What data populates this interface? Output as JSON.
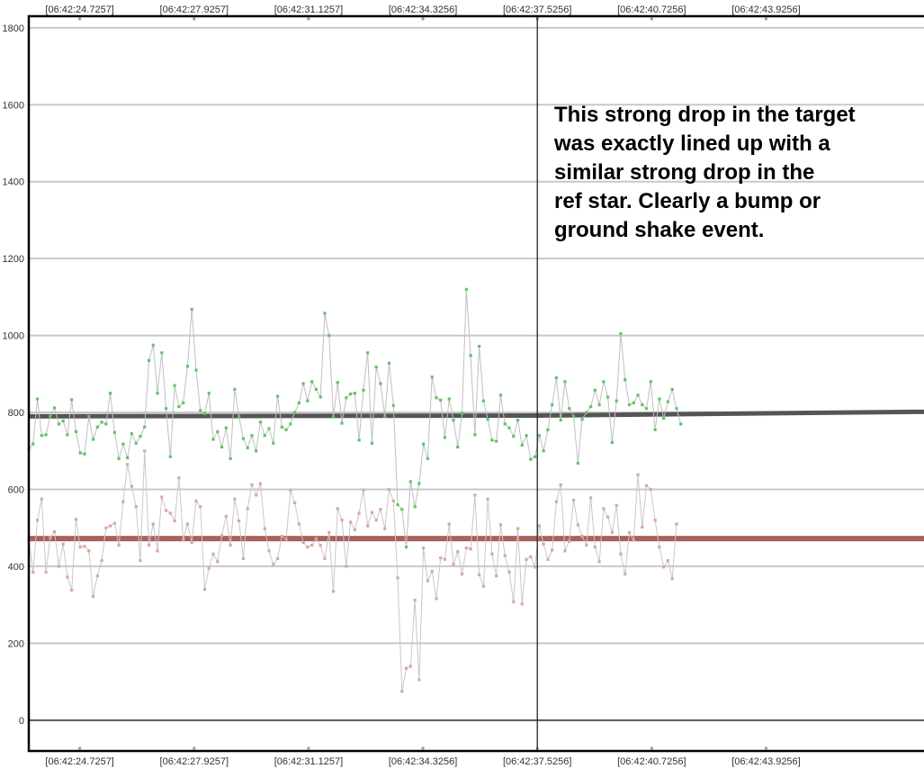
{
  "colors": {
    "background": "#ffffff",
    "gridline": "#c8c8c8",
    "frame": "#000000",
    "cursor_line": "#222222",
    "zero_line": "#555555",
    "target_points": "#5fc65f",
    "target_line": "#c0c0c0",
    "target_baseline": "#555555",
    "ref_points": "#d9a89a",
    "ref_line": "#c8c8c8",
    "ref_baseline": "#a86060"
  },
  "annotation": {
    "text": "This strong drop in the target\nwas exactly lined up with a\nsimilar strong drop in the\nref star. Clearly a bump or\nground shake event."
  },
  "chart_data": {
    "type": "line",
    "title": "",
    "xlabel": "",
    "ylabel": "",
    "xlim": [
      "06:42:23.30",
      "06:42:48.72"
    ],
    "ylim": [
      -80,
      1830
    ],
    "yticks": [
      0,
      200,
      400,
      600,
      800,
      1000,
      1200,
      1400,
      1600,
      1800
    ],
    "ytick_labels": [
      "0",
      "200",
      "400",
      "600",
      "800",
      "1000",
      "1200",
      "1400",
      "1600",
      "1800"
    ],
    "xticks": [
      "06:42:24.7257",
      "06:42:27.9257",
      "06:42:31.1257",
      "06:42:34.3256",
      "06:42:37.5256",
      "06:42:40.7256",
      "06:42:43.9256"
    ],
    "xtick_labels": [
      "[06:42:24.7257]",
      "[06:42:27.9257]",
      "[06:42:31.1257]",
      "[06:42:34.3256]",
      "[06:42:37.5256]",
      "[06:42:40.7256]",
      "[06:42:43.9256]"
    ],
    "cursor_x": "06:42:37.5256",
    "grid": true,
    "legend": "none",
    "series": [
      {
        "role": "target",
        "start": "06:42:23.30",
        "step_seconds": 0.12,
        "values": [
          705,
          718,
          835,
          740,
          742,
          790,
          812,
          770,
          778,
          742,
          833,
          750,
          695,
          692,
          790,
          730,
          762,
          775,
          770,
          850,
          748,
          680,
          718,
          682,
          745,
          720,
          738,
          762,
          935,
          975,
          850,
          955,
          810,
          685,
          870,
          815,
          825,
          920,
          1068,
          910,
          805,
          797,
          850,
          730,
          750,
          710,
          760,
          680,
          860,
          790,
          732,
          708,
          740,
          700,
          775,
          740,
          758,
          720,
          842,
          762,
          755,
          770,
          800,
          825,
          875,
          830,
          880,
          860,
          840,
          1058,
          1000,
          788,
          878,
          772,
          838,
          848,
          850,
          728,
          858,
          955,
          720,
          918,
          875,
          790,
          928,
          818,
          560,
          548,
          450,
          620,
          555,
          615,
          718,
          680,
          892,
          838,
          832,
          735,
          835,
          780,
          710,
          798,
          1120,
          948,
          742,
          972,
          830,
          782,
          728,
          725,
          845,
          770,
          760,
          738,
          780,
          715,
          740,
          678,
          685,
          740,
          700,
          755,
          820,
          890,
          780,
          880,
          810,
          790,
          668,
          782,
          800,
          815,
          858,
          820,
          880,
          840,
          722,
          830,
          1005,
          885,
          820,
          825,
          845,
          820,
          810,
          880,
          755,
          835,
          785,
          828,
          860,
          810,
          770
        ]
      },
      {
        "role": "reference",
        "start": "06:42:23.30",
        "step_seconds": 0.12,
        "values": [
          470,
          385,
          520,
          575,
          385,
          475,
          490,
          400,
          458,
          372,
          338,
          522,
          450,
          452,
          440,
          322,
          375,
          415,
          500,
          505,
          512,
          455,
          568,
          665,
          608,
          555,
          415,
          700,
          455,
          510,
          440,
          580,
          545,
          538,
          518,
          630,
          470,
          510,
          462,
          570,
          555,
          340,
          395,
          432,
          412,
          480,
          530,
          455,
          575,
          518,
          420,
          550,
          612,
          585,
          615,
          498,
          440,
          405,
          420,
          478,
          470,
          598,
          565,
          510,
          462,
          450,
          455,
          472,
          455,
          420,
          488,
          335,
          550,
          520,
          400,
          515,
          495,
          538,
          598,
          505,
          540,
          520,
          548,
          498,
          600,
          570,
          370,
          75,
          135,
          140,
          312,
          105,
          448,
          362,
          387,
          316,
          422,
          418,
          510,
          405,
          438,
          380,
          448,
          445,
          585,
          378,
          348,
          575,
          432,
          375,
          508,
          428,
          385,
          308,
          498,
          302,
          418,
          425,
          398,
          505,
          458,
          418,
          442,
          568,
          612,
          440,
          465,
          572,
          508,
          478,
          455,
          578,
          450,
          412,
          550,
          528,
          488,
          558,
          432,
          380,
          488,
          468,
          638,
          502,
          610,
          600,
          520,
          450,
          398,
          415,
          368,
          510
        ]
      },
      {
        "role": "target-baseline",
        "x": [
          "06:42:23.30",
          "06:42:37.5256",
          "06:42:48.72"
        ],
        "values": [
          790,
          792,
          802
        ]
      },
      {
        "role": "reference-baseline",
        "x": [
          "06:42:23.30",
          "06:42:48.72"
        ],
        "values": [
          472,
          472
        ]
      }
    ]
  }
}
